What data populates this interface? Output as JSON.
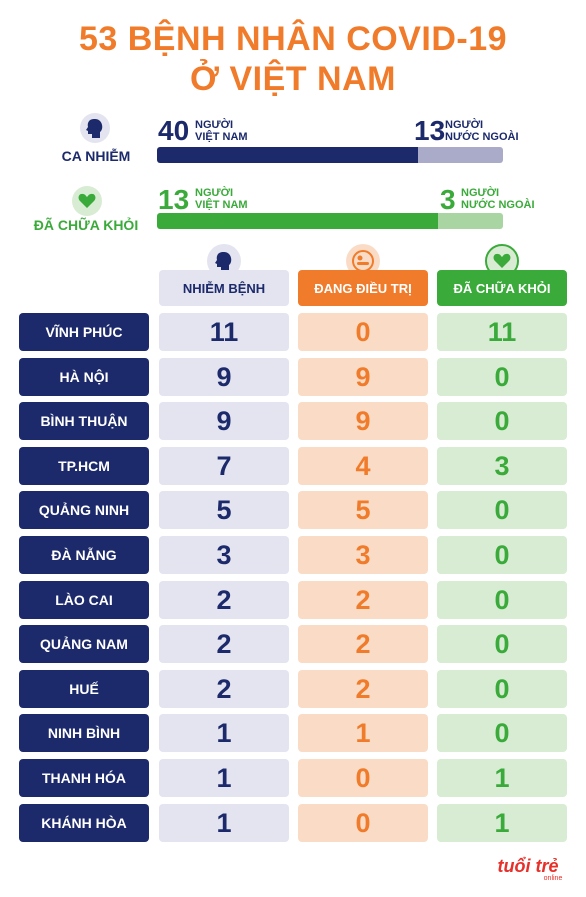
{
  "title": {
    "line1": "53 BỆNH NHÂN COVID-19",
    "line2": "Ở VIỆT NAM"
  },
  "summary": {
    "infected": {
      "label": "CA NHIỄM",
      "icon": "head-icon",
      "vietnam_value": "40",
      "vietnam_unit_line1": "NGƯỜI",
      "vietnam_unit_line2": "VIỆT NAM",
      "foreign_value": "13",
      "foreign_unit_line1": "NGƯỜI",
      "foreign_unit_line2": "NƯỚC NGOÀI",
      "vietnam": 40,
      "foreign": 13,
      "colors": {
        "vietnam": "#1c2a6b",
        "foreign": "#a9abc8"
      }
    },
    "recovered": {
      "label": "ĐÃ CHỮA KHỎI",
      "icon": "heart-icon",
      "vietnam_value": "13",
      "vietnam_unit_line1": "NGƯỜI",
      "vietnam_unit_line2": "VIỆT NAM",
      "foreign_value": "3",
      "foreign_unit_line1": "NGƯỜI",
      "foreign_unit_line2": "NƯỚC NGOÀI",
      "vietnam": 13,
      "foreign": 3,
      "colors": {
        "vietnam": "#3aaa3a",
        "foreign": "#a9d5a2"
      }
    }
  },
  "columns": [
    {
      "label": "NHIỄM BỆNH",
      "icon": "head-icon",
      "color": "#1c2a6b"
    },
    {
      "label": "ĐANG ĐIỀU TRỊ",
      "icon": "patient-icon",
      "color": "#f07b2a"
    },
    {
      "label": "ĐÃ CHỮA KHỎI",
      "icon": "heart-icon",
      "color": "#3aaa3a"
    }
  ],
  "rows": [
    {
      "province": "VĨNH PHÚC",
      "infected": "11",
      "treating": "0",
      "recovered": "11"
    },
    {
      "province": "HÀ NỘI",
      "infected": "9",
      "treating": "9",
      "recovered": "0"
    },
    {
      "province": "BÌNH THUẬN",
      "infected": "9",
      "treating": "9",
      "recovered": "0"
    },
    {
      "province": "TP.HCM",
      "infected": "7",
      "treating": "4",
      "recovered": "3"
    },
    {
      "province": "QUẢNG NINH",
      "infected": "5",
      "treating": "5",
      "recovered": "0"
    },
    {
      "province": "ĐÀ NẴNG",
      "infected": "3",
      "treating": "3",
      "recovered": "0"
    },
    {
      "province": "LÀO CAI",
      "infected": "2",
      "treating": "2",
      "recovered": "0"
    },
    {
      "province": "QUẢNG NAM",
      "infected": "2",
      "treating": "2",
      "recovered": "0"
    },
    {
      "province": "HUẾ",
      "infected": "2",
      "treating": "2",
      "recovered": "0"
    },
    {
      "province": "NINH BÌNH",
      "infected": "1",
      "treating": "1",
      "recovered": "0"
    },
    {
      "province": "THANH HÓA",
      "infected": "1",
      "treating": "0",
      "recovered": "1"
    },
    {
      "province": "KHÁNH HÒA",
      "infected": "1",
      "treating": "0",
      "recovered": "1"
    }
  ],
  "chart_data": {
    "type": "table",
    "title": "53 BỆNH NHÂN COVID-19 Ở VIỆT NAM",
    "columns": [
      "NHIỄM BỆNH",
      "ĐANG ĐIỀU TRỊ",
      "ĐÃ CHỮA KHỎI"
    ],
    "categories": [
      "VĨNH PHÚC",
      "HÀ NỘI",
      "BÌNH THUẬN",
      "TP.HCM",
      "QUẢNG NINH",
      "ĐÀ NẴNG",
      "LÀO CAI",
      "QUẢNG NAM",
      "HUẾ",
      "NINH BÌNH",
      "THANH HÓA",
      "KHÁNH HÒA"
    ],
    "series": [
      {
        "name": "NHIỄM BỆNH",
        "values": [
          11,
          9,
          9,
          7,
          5,
          3,
          2,
          2,
          2,
          1,
          1,
          1
        ]
      },
      {
        "name": "ĐANG ĐIỀU TRỊ",
        "values": [
          0,
          9,
          9,
          4,
          5,
          3,
          2,
          2,
          2,
          1,
          0,
          0
        ]
      },
      {
        "name": "ĐÃ CHỮA KHỎI",
        "values": [
          11,
          0,
          0,
          3,
          0,
          0,
          0,
          0,
          0,
          0,
          1,
          1
        ]
      }
    ]
  },
  "logo": {
    "text_main": "tuổi trẻ",
    "text_sub": "online",
    "color": "#e8302a"
  }
}
